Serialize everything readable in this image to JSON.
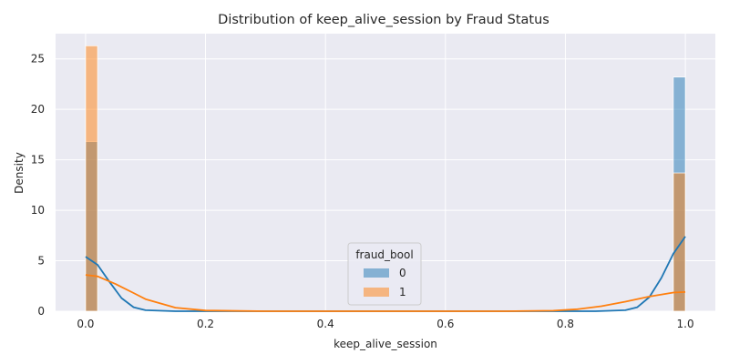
{
  "chart_data": {
    "type": "histogram",
    "title": "Distribution of keep_alive_session by Fraud Status",
    "xlabel": "keep_alive_session",
    "ylabel": "Density",
    "xlim": [
      -0.05,
      1.05
    ],
    "ylim": [
      0,
      27.5
    ],
    "x_ticks": [
      0.0,
      0.2,
      0.4,
      0.6,
      0.8,
      1.0
    ],
    "x_tick_labels": [
      "0.0",
      "0.2",
      "0.4",
      "0.6",
      "0.8",
      "1.0"
    ],
    "y_ticks": [
      0,
      5,
      10,
      15,
      20,
      25
    ],
    "y_tick_labels": [
      "0",
      "5",
      "10",
      "15",
      "20",
      "25"
    ],
    "grid": true,
    "legend": {
      "title": "fraud_bool",
      "placement": "lower-center"
    },
    "series": [
      {
        "name": "0",
        "color": "#1f77b4",
        "bins": [
          {
            "x0": 0.0,
            "x1": 0.02,
            "density": 16.8
          },
          {
            "x0": 0.98,
            "x1": 1.0,
            "density": 23.2
          }
        ],
        "kde": [
          [
            0.0,
            5.4
          ],
          [
            0.02,
            4.6
          ],
          [
            0.04,
            2.9
          ],
          [
            0.06,
            1.3
          ],
          [
            0.08,
            0.4
          ],
          [
            0.1,
            0.1
          ],
          [
            0.15,
            0.0
          ],
          [
            0.85,
            0.0
          ],
          [
            0.9,
            0.1
          ],
          [
            0.92,
            0.4
          ],
          [
            0.94,
            1.4
          ],
          [
            0.96,
            3.3
          ],
          [
            0.98,
            5.7
          ],
          [
            1.0,
            7.4
          ]
        ]
      },
      {
        "name": "1",
        "color": "#ff7f0e",
        "bins": [
          {
            "x0": 0.0,
            "x1": 0.02,
            "density": 26.3
          },
          {
            "x0": 0.98,
            "x1": 1.0,
            "density": 13.7
          }
        ],
        "kde": [
          [
            0.0,
            3.6
          ],
          [
            0.02,
            3.45
          ],
          [
            0.05,
            2.7
          ],
          [
            0.08,
            1.8
          ],
          [
            0.1,
            1.2
          ],
          [
            0.15,
            0.35
          ],
          [
            0.2,
            0.07
          ],
          [
            0.3,
            0.0
          ],
          [
            0.7,
            0.0
          ],
          [
            0.78,
            0.05
          ],
          [
            0.82,
            0.2
          ],
          [
            0.86,
            0.5
          ],
          [
            0.9,
            0.95
          ],
          [
            0.94,
            1.45
          ],
          [
            0.98,
            1.85
          ],
          [
            1.0,
            1.9
          ]
        ]
      }
    ]
  }
}
